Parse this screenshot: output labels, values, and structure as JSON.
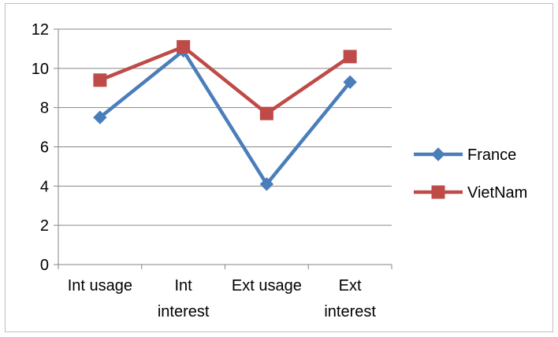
{
  "chart_data": {
    "type": "line",
    "categories": [
      [
        "Int usage"
      ],
      [
        "Int",
        "interest"
      ],
      [
        "Ext usage"
      ],
      [
        "Ext",
        "interest"
      ]
    ],
    "series": [
      {
        "name": "France",
        "values": [
          7.5,
          10.9,
          4.1,
          9.3
        ],
        "color": "#4a7ebb",
        "marker": "diamond"
      },
      {
        "name": "VietNam",
        "values": [
          9.4,
          11.1,
          7.7,
          10.6
        ],
        "color": "#be4b48",
        "marker": "square"
      }
    ],
    "ylim": [
      0,
      12
    ],
    "yticks": [
      0,
      2,
      4,
      6,
      8,
      10,
      12
    ],
    "grid": true,
    "legend_position": "right"
  }
}
